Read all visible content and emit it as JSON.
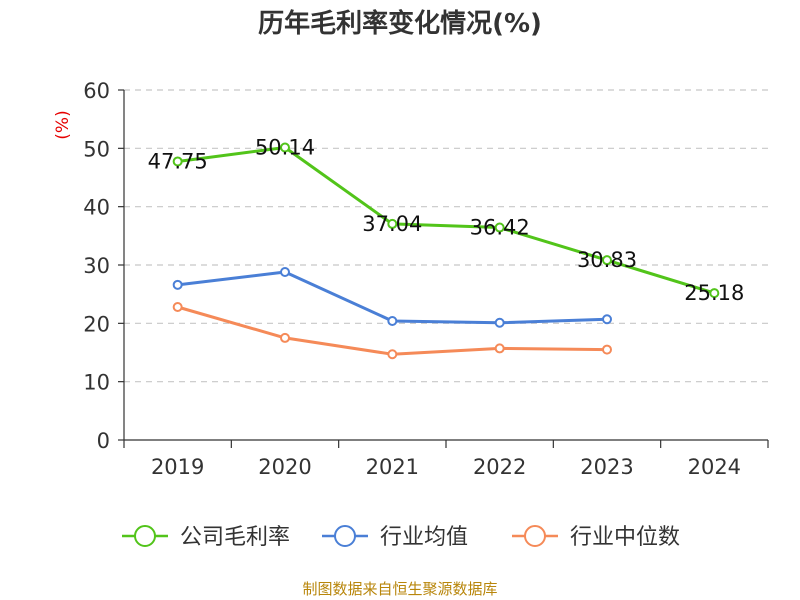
{
  "chart_data": {
    "type": "line",
    "title": "历年毛利率变化情况(%)",
    "ylabel": "(%)",
    "xlabel": "",
    "categories": [
      "2019",
      "2020",
      "2021",
      "2022",
      "2023",
      "2024"
    ],
    "ylim": [
      0,
      60
    ],
    "yticks": [
      0,
      10,
      20,
      30,
      40,
      50,
      60
    ],
    "grid": true,
    "legend_position": "bottom",
    "series": [
      {
        "name": "公司毛利率",
        "color": "#52c41a",
        "values": [
          47.75,
          50.14,
          37.04,
          36.42,
          30.83,
          25.18
        ],
        "labels": [
          "47.75",
          "50.14",
          "37.04",
          "36.42",
          "30.83",
          "25.18"
        ]
      },
      {
        "name": "行业均值",
        "color": "#4a7fd6",
        "values": [
          26.6,
          28.8,
          20.4,
          20.1,
          20.7,
          null
        ]
      },
      {
        "name": "行业中位数",
        "color": "#f58a58",
        "values": [
          22.8,
          17.5,
          14.7,
          15.7,
          15.5,
          null
        ]
      }
    ]
  },
  "source_text": "制图数据来自恒生聚源数据库"
}
